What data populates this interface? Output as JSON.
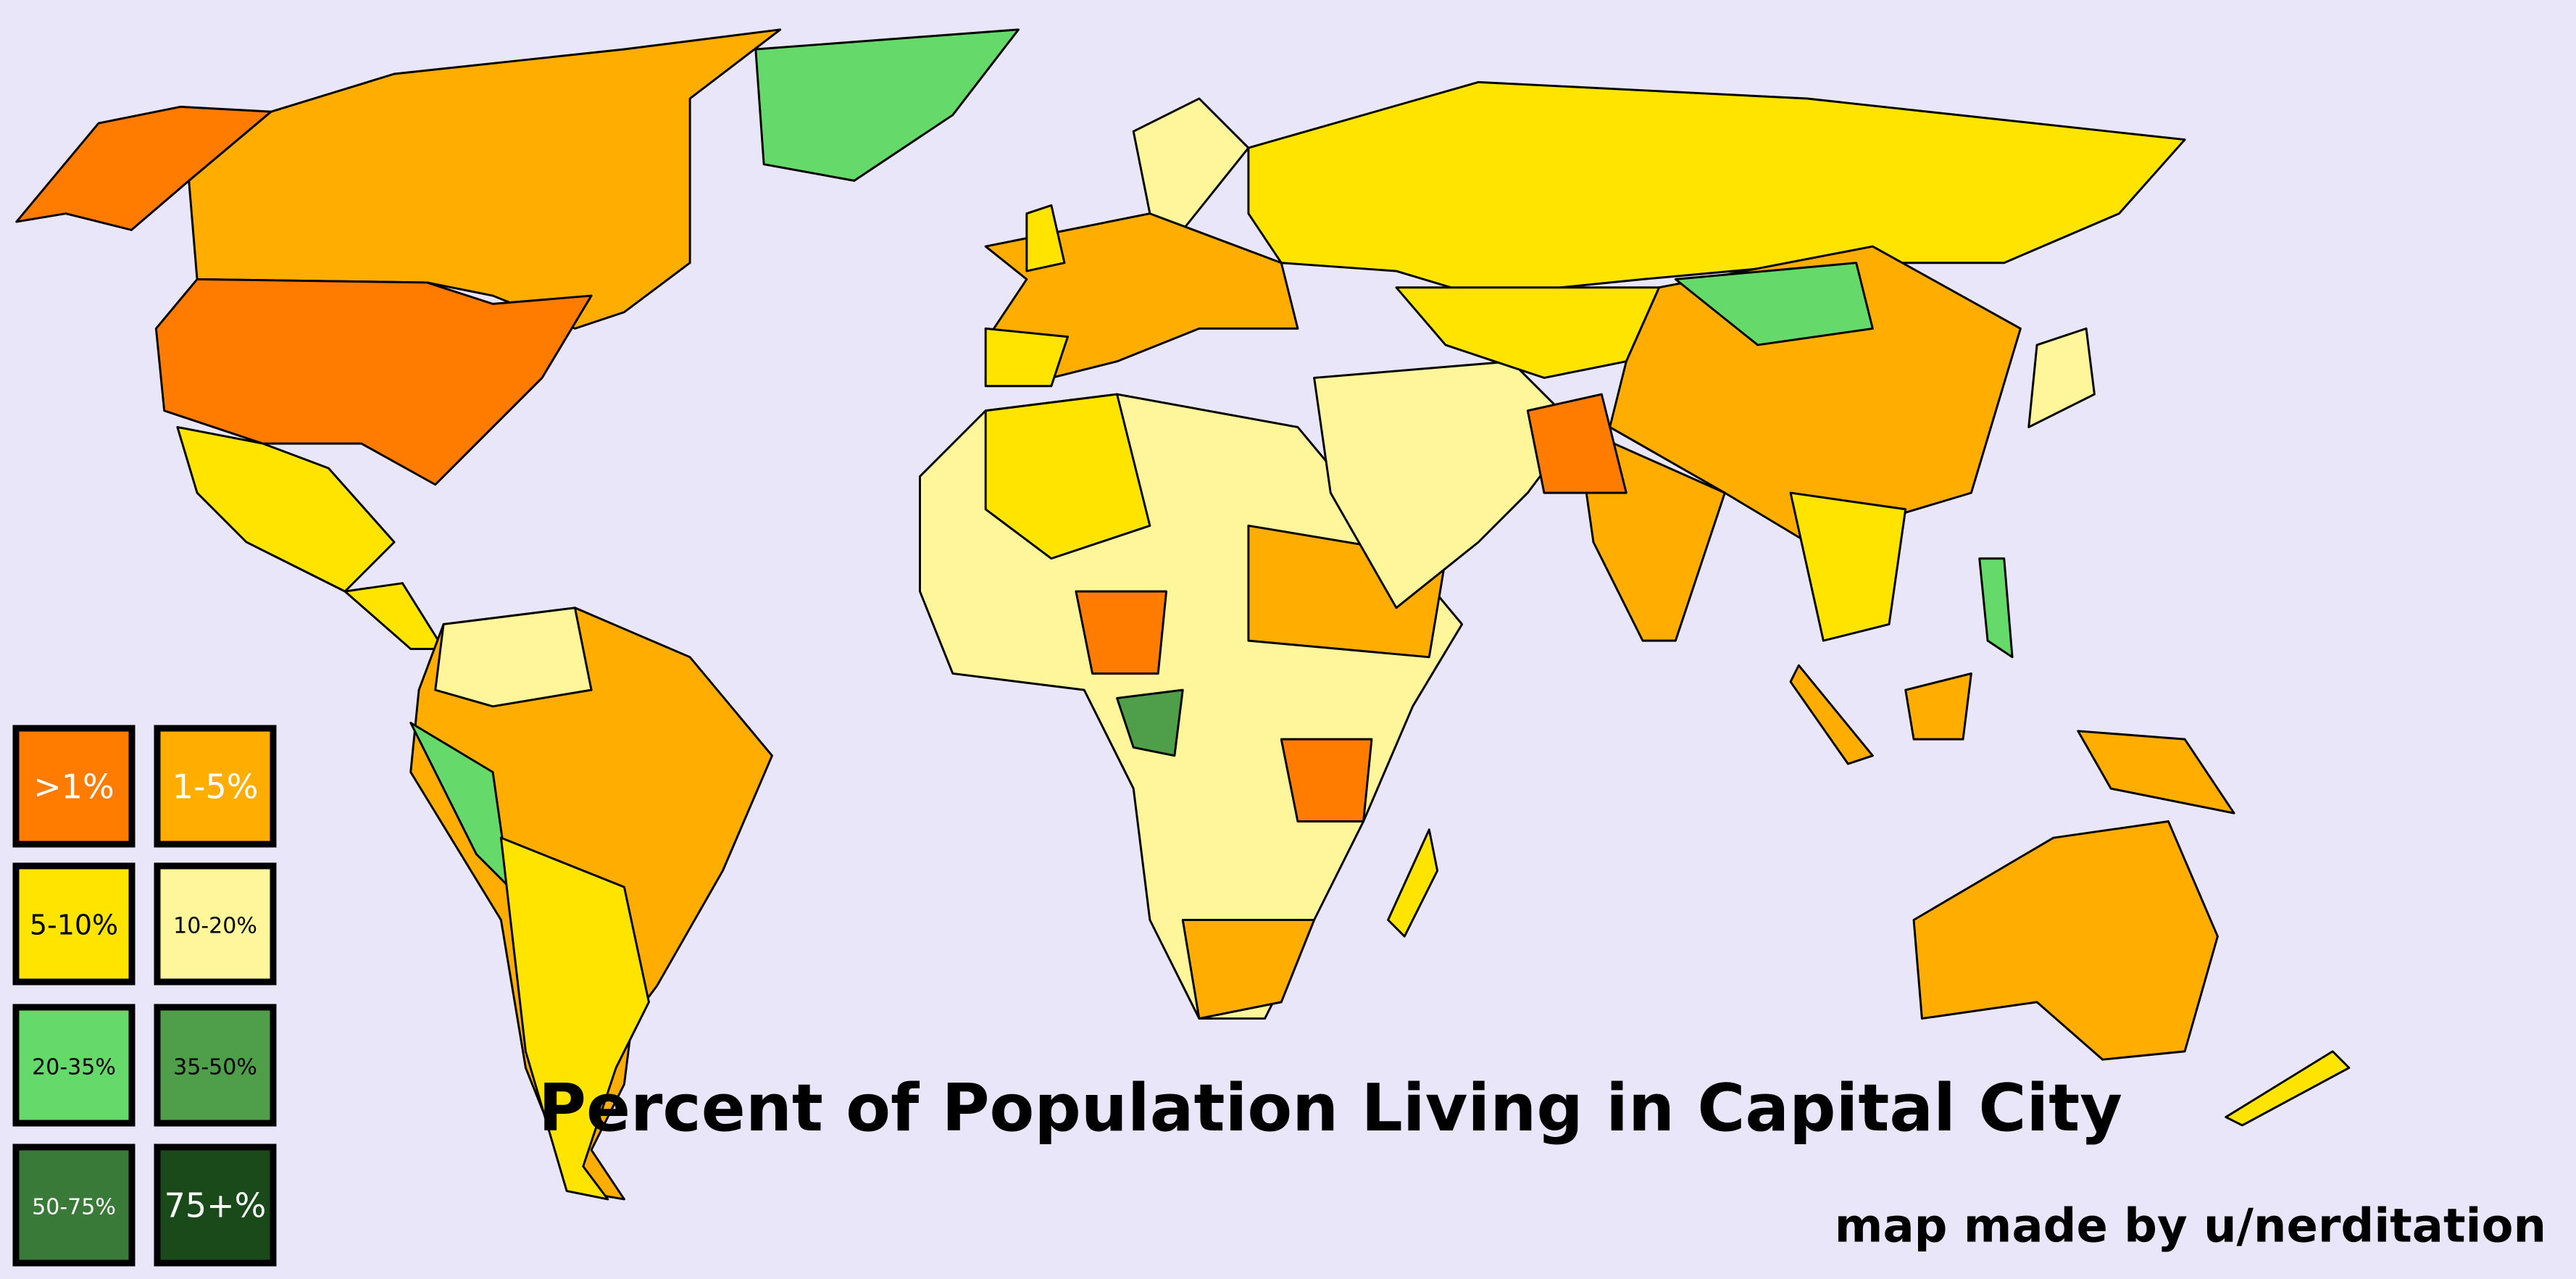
{
  "title": "Percent of Population Living in Capital City",
  "credit": "map made by u/nerditation",
  "legend": [
    {
      "label": ">1%",
      "color": "#ff7c00",
      "text_color": "#ffffff"
    },
    {
      "label": "1-5%",
      "color": "#ffae00",
      "text_color": "#ffffff"
    },
    {
      "label": "5-10%",
      "color": "#ffe400",
      "text_color": "#000000"
    },
    {
      "label": "10-20%",
      "color": "#fff59a",
      "text_color": "#000000"
    },
    {
      "label": "20-35%",
      "color": "#66d96b",
      "text_color": "#000000"
    },
    {
      "label": "35-50%",
      "color": "#4f9e4a",
      "text_color": "#000000"
    },
    {
      "label": "50-75%",
      "color": "#3a7a39",
      "text_color": "#ffffff"
    },
    {
      "label": "75+%",
      "color": "#1a4a1a",
      "text_color": "#ffffff"
    }
  ]
}
